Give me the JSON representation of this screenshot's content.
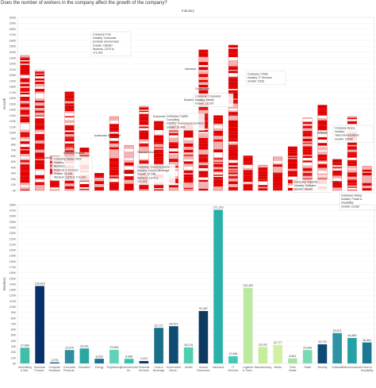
{
  "header": {
    "question": "Does the number of workers in the company affect the growth of the company?",
    "section_label": "Industry"
  },
  "chart_data": [
    {
      "type": "bar",
      "title": "",
      "ylabel": "Growth",
      "ylim": [
        0,
        300000
      ],
      "yticks": [
        "0K",
        "10K",
        "20K",
        "30K",
        "40K",
        "50K",
        "60K",
        "70K",
        "80K",
        "90K",
        "100K",
        "110K",
        "120K",
        "130K",
        "140K",
        "150K",
        "160K",
        "170K",
        "180K",
        "190K",
        "200K",
        "210K",
        "220K",
        "230K",
        "240K",
        "250K",
        "260K",
        "270K",
        "280K",
        "290K",
        "300K"
      ],
      "categories": [
        "Advertising & Mar..",
        "Business Product..",
        "Computer Hardware",
        "Consumer Products..",
        "Education",
        "Energy",
        "Engineering",
        "Environmental Se..",
        "Financial Services",
        "Food & Beverage",
        "Government Servic..",
        "Health",
        "Human Resources",
        "Insurance",
        "IT Services",
        "Logistics & Trans..",
        "Manufacturing",
        "Media",
        "Real Estate",
        "Retail",
        "Security",
        "Software",
        "Telecommunicati..",
        "Travel & Hospitality"
      ],
      "values": [
        234000,
        208000,
        60000,
        171203,
        74000,
        30000,
        128000,
        78000,
        146000,
        120000,
        119000,
        120000,
        244000,
        130000,
        252000,
        60000,
        44000,
        58000,
        76000,
        126000,
        148000,
        54000,
        128000,
        42000
      ],
      "bar_labels": [
        "",
        "",
        "",
        "Retail",
        "",
        "",
        "",
        "",
        "",
        "",
        "",
        "",
        "",
        "",
        "",
        "",
        "",
        "",
        "",
        "",
        "",
        "",
        "",
        ""
      ],
      "floating_labels": [
        "Automotive & Transport",
        "Environmental Services",
        "Construction",
        "Insurance",
        "Dynamic Solu..",
        "IT Ser..",
        "Business Products",
        "Business Products & Services",
        "Consumer Products & Services",
        "Financial Services",
        "Software",
        "Media",
        "Travel & Hospitality",
        "Security"
      ],
      "tooltips": [
        {
          "lines": [
            "Company: Futo",
            "Industry: Consumer",
            "products and services",
            "Growth: 158,567",
            "Workers: 1,870 to",
            "171,203"
          ]
        },
        {
          "lines": [
            "Company: CP&B",
            "Industry: IT Services",
            "Growth: 5,532"
          ]
        },
        {
          "lines": [
            "Company: Crosswind",
            "Industry: Health",
            "Growth: 18,375"
          ]
        },
        {
          "lines": [
            "Company: Capital",
            "Consulting",
            "Industry: Government Services",
            "Growth: 31,468"
          ]
        },
        {
          "lines": [
            "Company: Nexus 2019",
            "Industry:",
            "Business",
            "Products & Services",
            "Growth: 31,448",
            "Workers: 1,870 to 171,203"
          ]
        },
        {
          "lines": [
            "Company: Quarterly Bucks",
            "Industry: Food & Beverage",
            "Growth: 37,348",
            "Workers: 1,870 to",
            "171,203"
          ]
        },
        {
          "lines": [
            "Company: Arena",
            "Industry:",
            "Telecommunications",
            "Growth: 20,690"
          ]
        },
        {
          "lines": [
            "Company: Superfan",
            "Industry: Software",
            "Growth: 26,043"
          ]
        },
        {
          "lines": [
            "Company: Savoy",
            "Industry: Travel &",
            "Hospitality",
            "Growth: 16,182"
          ]
        }
      ]
    },
    {
      "type": "bar",
      "title": "",
      "ylabel": "Workers",
      "ylim": [
        0,
        280000
      ],
      "yticks": [
        "0K",
        "10K",
        "20K",
        "30K",
        "40K",
        "50K",
        "60K",
        "70K",
        "80K",
        "90K",
        "100K",
        "110K",
        "120K",
        "130K",
        "140K",
        "150K",
        "160K",
        "170K",
        "180K",
        "190K",
        "200K",
        "210K",
        "220K",
        "230K",
        "240K",
        "250K",
        "260K",
        "270K",
        "280K"
      ],
      "categories": [
        "Advertising & Mar..",
        "Business Product..",
        "Computer Hardware",
        "Consumer Products..",
        "Education",
        "Energy",
        "Engineering",
        "Environmental Se..",
        "Financial Services",
        "Food & Beverage",
        "Government Servic..",
        "Health",
        "Human Resources",
        "Insurance",
        "IT Services",
        "Logistics & Trans..",
        "Manufacturing",
        "Media",
        "Real Estate",
        "Retail",
        "Security",
        "Software",
        "Telecommunicati..",
        "Travel & Hospitality"
      ],
      "values": [
        27680,
        136618,
        1978,
        23575,
        26391,
        8253,
        23965,
        8088,
        4223,
        62727,
        65623,
        28278,
        92467,
        271203,
        12686,
        133492,
        29102,
        32777,
        8802,
        23608,
        33722,
        53571,
        44885,
        36961
      ],
      "value_labels": [
        "27,680",
        "136,618",
        "1,978",
        "23,575",
        "26,391",
        "8,253",
        "23,965",
        "8,088",
        "4,223",
        "62,727",
        "65,623",
        "28,278",
        "92,467",
        "271,203",
        "12,686",
        "133,492",
        "29,102",
        "32,777",
        "8,802",
        "23,608",
        "33,722",
        "53,571",
        "44,885",
        "36,961"
      ],
      "colors": [
        "#3fbfa9",
        "#08306b",
        "#1d5f86",
        "#2b8fa0",
        "#2aa7a0",
        "#1f7390",
        "#5fd2b8",
        "#2ec4b0",
        "#0b3d67",
        "#1a6e88",
        "#0f4c73",
        "#4fcfb0",
        "#0c3b62",
        "#2ab0a8",
        "#45c8b5",
        "#bde8a0",
        "#c7ed9c",
        "#d2f0a2",
        "#a9e3a0",
        "#7ad9b0",
        "#0d4a75",
        "#2d94a5",
        "#24a1a4",
        "#1b7792"
      ],
      "xtick_labels": [
        "Advertising & Mar..",
        "Business Product..",
        "Computer Hardware",
        "Consumer Products..",
        "Education",
        "Energy",
        "Engineering",
        "Environmental Se..",
        "Financial Services",
        "Food & Beverage",
        "Government Servic..",
        "Health",
        "Human Resources",
        "Insurance",
        "IT Services",
        "Logistics & Trans..",
        "Manufacturing",
        "Media",
        "Real Estate",
        "Retail",
        "Security",
        "Software",
        "Telecommunicati..",
        "Travel & Hospitality"
      ]
    }
  ],
  "colors": {
    "growth_bar_strong": "#e00000",
    "growth_bar_light": "#f2b0b0"
  }
}
